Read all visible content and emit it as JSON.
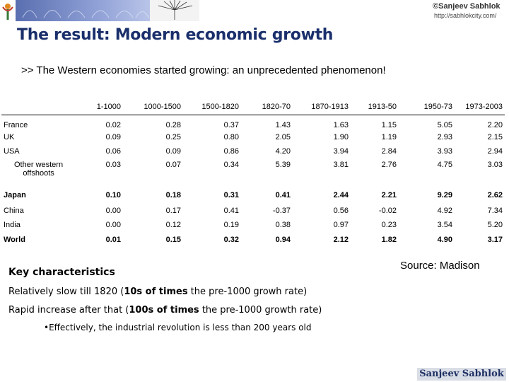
{
  "header": {
    "copyright": "©Sanjeev Sabhlok",
    "url": "http://sabhlokcity.com/"
  },
  "slide": {
    "title": "The result: Modern economic growth",
    "subtitle": ">> The Western economies started growing: an unprecedented phenomenon!"
  },
  "table": {
    "columns": [
      "1-1000",
      "1000-1500",
      "1500-1820",
      "1820-70",
      "1870-1913",
      "1913-50",
      "1950-73",
      "1973-2003"
    ],
    "rows": [
      {
        "label": "France",
        "values": [
          "0.02",
          "0.28",
          "0.37",
          "1.43",
          "1.63",
          "1.15",
          "5.05",
          "2.20"
        ]
      },
      {
        "label": "UK",
        "values": [
          "0.09",
          "0.25",
          "0.80",
          "2.05",
          "1.90",
          "1.19",
          "2.93",
          "2.15"
        ]
      },
      {
        "label": "USA",
        "values": [
          "0.06",
          "0.09",
          "0.86",
          "4.20",
          "3.94",
          "2.84",
          "3.93",
          "2.94"
        ]
      },
      {
        "label": "Other western offshoots",
        "label_line1": "Other western",
        "label_line2": "offshoots",
        "values": [
          "0.03",
          "0.07",
          "0.34",
          "5.39",
          "3.81",
          "2.76",
          "4.75",
          "3.03"
        ]
      },
      {
        "label": "Japan",
        "values": [
          "0.10",
          "0.18",
          "0.31",
          "0.41",
          "2.44",
          "2.21",
          "9.29",
          "2.62"
        ]
      },
      {
        "label": "China",
        "values": [
          "0.00",
          "0.17",
          "0.41",
          "-0.37",
          "0.56",
          "-0.02",
          "4.92",
          "7.34"
        ]
      },
      {
        "label": "India",
        "values": [
          "0.00",
          "0.12",
          "0.19",
          "0.38",
          "0.97",
          "0.23",
          "3.54",
          "5.20"
        ]
      },
      {
        "label": "World",
        "values": [
          "0.01",
          "0.15",
          "0.32",
          "0.94",
          "2.12",
          "1.82",
          "4.90",
          "3.17"
        ]
      }
    ]
  },
  "notes": {
    "key_title": "Key characteristics",
    "line1_a": "Relatively slow till 1820 (",
    "line1_b": "10s of times",
    "line1_c": " the pre-1000 growh rate)",
    "line2_a": "Rapid increase after that (",
    "line2_b": "100s of times",
    "line2_c": " the pre-1000 growth rate)",
    "bullet": "•Effectively, the industrial revolution is less than 200 years old",
    "source": "Source: Madison"
  },
  "footer": {
    "signature": "Sanjeev Sabhlok"
  },
  "colors": {
    "title": "#1a2f6b",
    "banner": "#5a6fb0"
  }
}
